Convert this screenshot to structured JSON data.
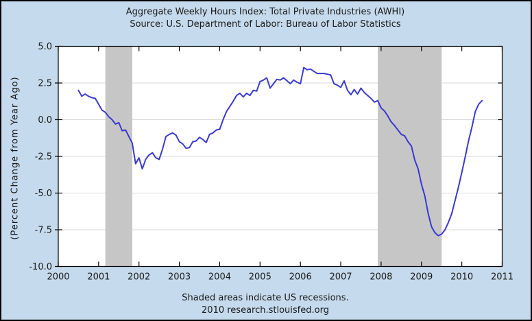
{
  "chart_data": {
    "type": "line",
    "title": "Aggregate Weekly Hours Index: Total Private Industries (AWHI)",
    "subtitle": "Source: U.S. Department of Labor: Bureau of Labor Statistics",
    "ylabel": "(Percent Change from Year Ago)",
    "footnote": "Shaded areas indicate US recessions.",
    "credit": "2010 research.stlouisfed.org",
    "xlim": [
      2000,
      2011
    ],
    "ylim": [
      -10.0,
      5.0
    ],
    "x_ticks": [
      "2000",
      "2001",
      "2002",
      "2003",
      "2004",
      "2005",
      "2006",
      "2007",
      "2008",
      "2009",
      "2010",
      "2011"
    ],
    "y_ticks": [
      {
        "label": "5.0",
        "value": 5.0
      },
      {
        "label": "2.5",
        "value": 2.5
      },
      {
        "label": "0.0",
        "value": 0.0
      },
      {
        "label": "-2.5",
        "value": -2.5
      },
      {
        "label": "-5.0",
        "value": -5.0
      },
      {
        "label": "-7.5",
        "value": -7.5
      },
      {
        "label": "-10.0",
        "value": -10.0
      }
    ],
    "grid": "horizontal",
    "legend": "none",
    "colors": {
      "background": "#c5daec",
      "plot_background": "#ffffff",
      "line": "#3939cf",
      "recession_band": "#c6c6c6",
      "gridline": "#d9d9d9",
      "frame": "#000000",
      "text": "#1a1a1a"
    },
    "recessions": [
      {
        "start": "2001-03",
        "end": "2001-11"
      },
      {
        "start": "2007-12",
        "end": "2009-07"
      }
    ],
    "series": [
      {
        "name": "AWHI, percent change from year ago",
        "frequency": "monthly",
        "start": "2000-07",
        "end": "2010-07",
        "values": [
          2.0,
          1.6,
          1.75,
          1.6,
          1.5,
          1.45,
          1.05,
          0.65,
          0.5,
          0.2,
          0.0,
          -0.3,
          -0.2,
          -0.75,
          -0.7,
          -1.15,
          -1.6,
          -3.0,
          -2.6,
          -3.35,
          -2.7,
          -2.4,
          -2.25,
          -2.6,
          -2.7,
          -2.0,
          -1.15,
          -1.0,
          -0.9,
          -1.05,
          -1.5,
          -1.65,
          -1.95,
          -1.9,
          -1.5,
          -1.45,
          -1.2,
          -1.35,
          -1.55,
          -1.0,
          -0.9,
          -0.7,
          -0.65,
          0.0,
          0.55,
          0.9,
          1.25,
          1.65,
          1.8,
          1.55,
          1.8,
          1.65,
          2.0,
          1.95,
          2.6,
          2.7,
          2.85,
          2.15,
          2.45,
          2.75,
          2.7,
          2.85,
          2.65,
          2.45,
          2.7,
          2.55,
          2.45,
          3.55,
          3.4,
          3.45,
          3.3,
          3.15,
          3.15,
          3.15,
          3.1,
          3.05,
          2.45,
          2.35,
          2.2,
          2.65,
          2.0,
          1.7,
          2.05,
          1.75,
          2.15,
          1.85,
          1.65,
          1.45,
          1.2,
          1.3,
          0.8,
          0.6,
          0.25,
          -0.15,
          -0.4,
          -0.7,
          -1.0,
          -1.1,
          -1.5,
          -1.8,
          -2.75,
          -3.35,
          -4.4,
          -5.2,
          -6.4,
          -7.3,
          -7.7,
          -7.9,
          -7.8,
          -7.5,
          -7.0,
          -6.4,
          -5.5,
          -4.6,
          -3.6,
          -2.55,
          -1.45,
          -0.5,
          0.55,
          1.05,
          1.3
        ]
      }
    ]
  }
}
